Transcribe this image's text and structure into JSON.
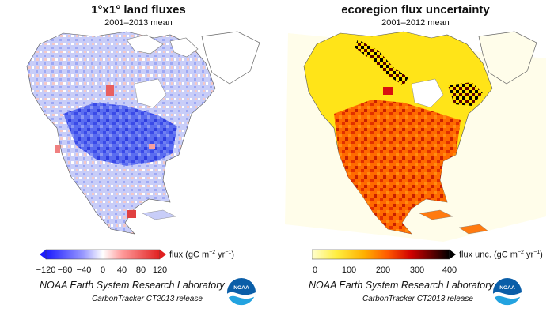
{
  "left": {
    "title": "1°x1° land fluxes",
    "subtitle": "2001–2013 mean",
    "colorbar": {
      "ticks": [
        "−120",
        "−80",
        "−40",
        "0",
        "40",
        "80",
        "120"
      ],
      "unit_prefix": "flux (gC m",
      "unit_exp1": "−2",
      "unit_mid": " yr",
      "unit_exp2": "−1",
      "unit_suffix": ")",
      "colors": [
        "#1a1aff",
        "#6e6eff",
        "#b6b6ff",
        "#ffffff",
        "#ffb6b6",
        "#ff6e6e",
        "#e02020"
      ]
    },
    "credit_line1": "NOAA Earth System Research Laboratory",
    "credit_line2": "CarbonTracker CT2013 release"
  },
  "right": {
    "title": "ecoregion flux uncertainty",
    "subtitle": "2001–2012 mean",
    "colorbar": {
      "ticks": [
        "0",
        "100",
        "200",
        "300",
        "400"
      ],
      "unit_prefix": "flux unc. (gC m",
      "unit_exp1": "−2",
      "unit_mid": " yr",
      "unit_exp2": "−1",
      "unit_suffix": ")",
      "colors": [
        "#ffffd0",
        "#ffee40",
        "#ffb000",
        "#ff5a00",
        "#d00000",
        "#5a0000",
        "#000000"
      ]
    },
    "credit_line1": "NOAA Earth System Research Laboratory",
    "credit_line2": "CarbonTracker CT2013 release"
  },
  "logo_text": "NOAA"
}
